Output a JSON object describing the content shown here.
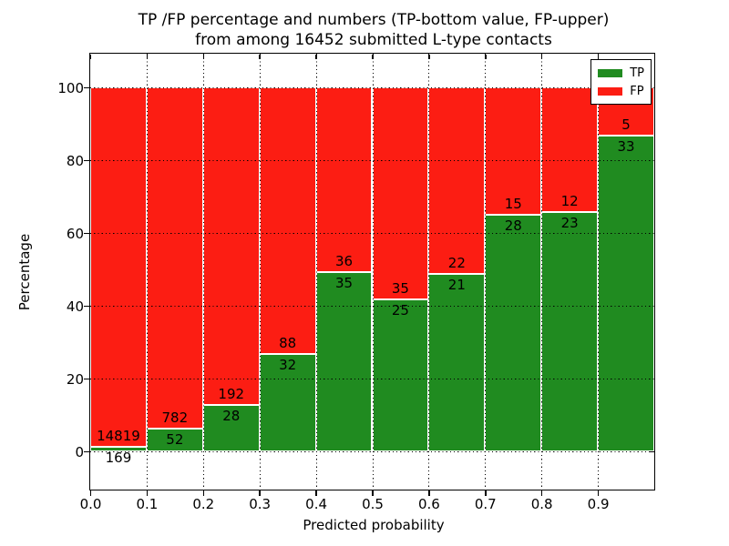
{
  "title": {
    "line1": "TP /FP percentage and numbers (TP-bottom value, FP-upper)",
    "line2": "from among 16452 submitted L-type contacts"
  },
  "chart_data": {
    "type": "bar",
    "stacked": true,
    "normalized": "each bin scaled to 100%",
    "title": "TP /FP percentage and numbers (TP-bottom value, FP-upper) from among 16452 submitted L-type contacts",
    "xlabel": "Predicted probability",
    "ylabel": "Percentage",
    "xlim": [
      0.0,
      1.0
    ],
    "ylim": [
      -10,
      110
    ],
    "bin_width": 0.1,
    "bin_starts": [
      0.0,
      0.1,
      0.2,
      0.3,
      0.4,
      0.5,
      0.6,
      0.7,
      0.8,
      0.9
    ],
    "xtick_labels": [
      "0.0",
      "0.1",
      "0.2",
      "0.3",
      "0.4",
      "0.5",
      "0.6",
      "0.7",
      "0.8",
      "0.9"
    ],
    "ytick_values": [
      0,
      20,
      40,
      60,
      80,
      100
    ],
    "grid": "dotted",
    "series": [
      {
        "name": "TP",
        "color": "#208b20",
        "counts": [
          169,
          52,
          28,
          32,
          35,
          25,
          21,
          28,
          23,
          33
        ],
        "percent": [
          1.1,
          6.2,
          12.7,
          26.7,
          49.3,
          41.7,
          48.8,
          65.1,
          65.7,
          86.8
        ]
      },
      {
        "name": "FP",
        "color": "#fc1d13",
        "counts": [
          14819,
          782,
          192,
          88,
          36,
          35,
          22,
          15,
          12,
          5
        ],
        "percent": [
          98.9,
          93.8,
          87.3,
          73.3,
          50.7,
          58.3,
          51.2,
          34.9,
          34.3,
          13.2
        ]
      }
    ],
    "legend": {
      "position": "upper right",
      "entries": [
        "TP",
        "FP"
      ]
    }
  }
}
